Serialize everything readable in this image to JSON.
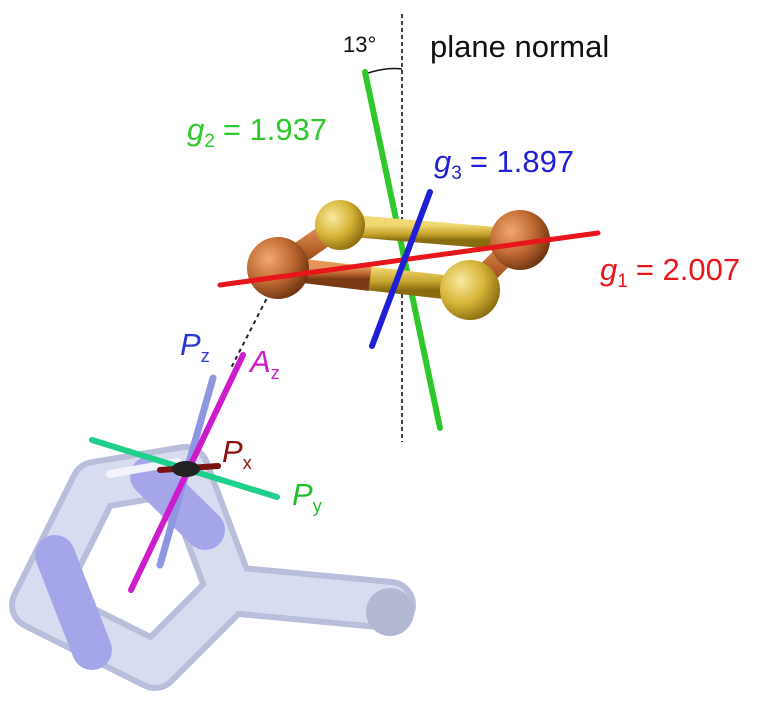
{
  "angle_label": "13°",
  "plane_normal_label": "plane normal",
  "g1": {
    "symbol": "g",
    "subscript": "1",
    "value_text": "= 2.007",
    "color": "#e8151b"
  },
  "g2": {
    "symbol": "g",
    "subscript": "2",
    "value_text": "= 1.937",
    "color": "#2ec82a"
  },
  "g3": {
    "symbol": "g",
    "subscript": "3",
    "value_text": "= 1.897",
    "color": "#1f1fd6"
  },
  "Pz": {
    "symbol": "P",
    "subscript": "z",
    "color": "#2a36d8"
  },
  "Az": {
    "symbol": "A",
    "subscript": "z",
    "color": "#cc1ccc"
  },
  "Px": {
    "symbol": "P",
    "subscript": "x",
    "color": "#8b1010"
  },
  "Py": {
    "symbol": "P",
    "subscript": "y",
    "color": "#1fc02a"
  },
  "colors": {
    "iron": "#c06a32",
    "sulfur": "#d6b437",
    "ring_carbon": "#d8dcf0",
    "ring_nitrogen": "#9e9ee8",
    "pz_axis": "#8f97e0",
    "py_axis": "#1fcf8c",
    "az_axis": "#cc1ccc"
  }
}
